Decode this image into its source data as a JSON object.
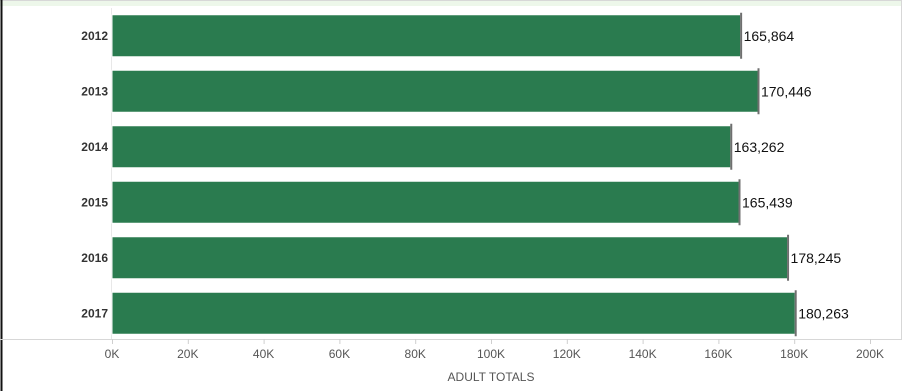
{
  "colors": {
    "bar": "#2a7b4f",
    "bar_stroke": "#ffffff",
    "background": "#ffffff",
    "top_band": "#edf7ea",
    "border": "#d7d7d7",
    "left_border": "#111111",
    "grid": "#e8e8e8",
    "tick": "#cfcfcf",
    "marker": "#6f6f6f"
  },
  "chart_data": {
    "type": "bar",
    "orientation": "horizontal",
    "categories": [
      "2012",
      "2013",
      "2014",
      "2015",
      "2016",
      "2017"
    ],
    "values": [
      165864,
      170446,
      163262,
      165439,
      178245,
      180263
    ],
    "value_labels": [
      "165,864",
      "170,446",
      "163,262",
      "165,439",
      "178,245",
      "180,263"
    ],
    "xlabel": "ADULT TOTALS",
    "ylabel": "",
    "xlim": [
      0,
      200000
    ],
    "x_ticks": [
      {
        "value": 0,
        "label": "0K"
      },
      {
        "value": 20000,
        "label": "20K"
      },
      {
        "value": 40000,
        "label": "40K"
      },
      {
        "value": 60000,
        "label": "60K"
      },
      {
        "value": 80000,
        "label": "80K"
      },
      {
        "value": 100000,
        "label": "100K"
      },
      {
        "value": 120000,
        "label": "120K"
      },
      {
        "value": 140000,
        "label": "140K"
      },
      {
        "value": 160000,
        "label": "160K"
      },
      {
        "value": 180000,
        "label": "180K"
      },
      {
        "value": 200000,
        "label": "200K"
      }
    ],
    "grid": false,
    "legend": "none"
  }
}
